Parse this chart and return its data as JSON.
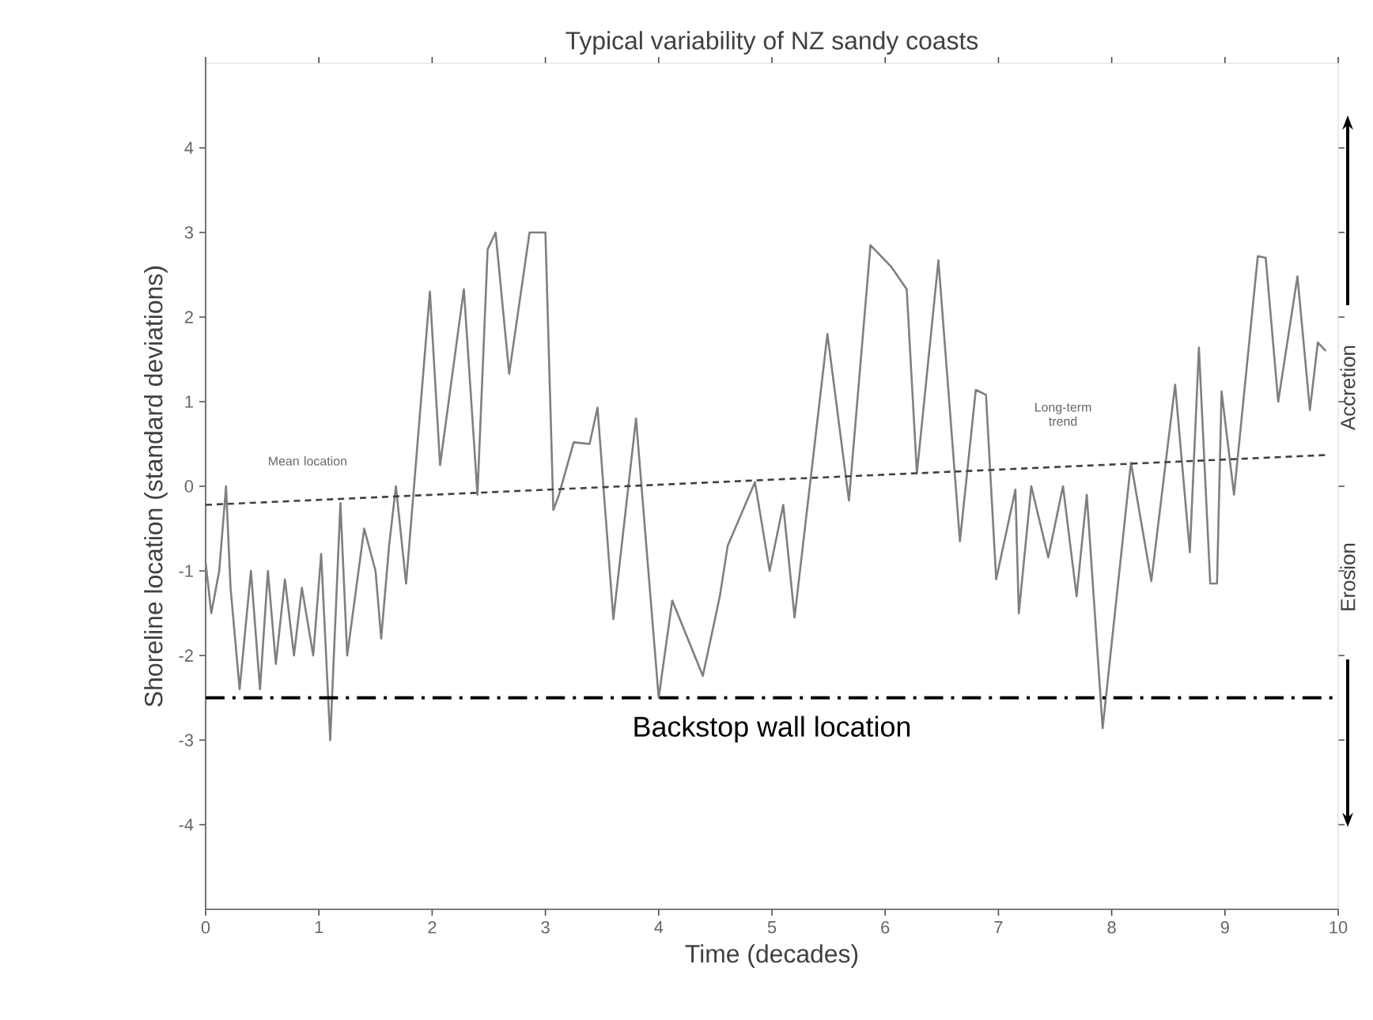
{
  "chart_data": {
    "type": "line",
    "title": "Typical variability of NZ sandy coasts",
    "xlabel": "Time (decades)",
    "ylabel": "Shoreline location (standard deviations)",
    "xlim": [
      0,
      10
    ],
    "ylim": [
      -5,
      5
    ],
    "xticks": [
      0,
      1,
      2,
      3,
      4,
      5,
      6,
      7,
      8,
      9,
      10
    ],
    "yticks": [
      -4,
      -3,
      -2,
      -1,
      0,
      1,
      2,
      3,
      4
    ],
    "marker": "none",
    "series": [
      {
        "color": "#7f7f7f",
        "line_style": "solid",
        "x": [
          0,
          0.05,
          0.12,
          0.18,
          0.22,
          0.3,
          0.4,
          0.48,
          0.55,
          0.62,
          0.7,
          0.78,
          0.85,
          0.95,
          1.02,
          1.1,
          1.19,
          1.25,
          1.4,
          1.5,
          1.55,
          1.62,
          1.68,
          1.77,
          1.98,
          2.07,
          2.28,
          2.4,
          2.49,
          2.56,
          2.68,
          2.86,
          3.0,
          3.07,
          3.12,
          3.25,
          3.39,
          3.46,
          3.6,
          3.8,
          4.0,
          4.12,
          4.39,
          4.54,
          4.61,
          4.85,
          4.98,
          5.1,
          5.2,
          5.49,
          5.68,
          5.87,
          6.05,
          6.19,
          6.28,
          6.47,
          6.66,
          6.8,
          6.89,
          6.98,
          7.15,
          7.18,
          7.29,
          7.44,
          7.57,
          7.69,
          7.78,
          7.92,
          8.17,
          8.35,
          8.56,
          8.69,
          8.77,
          8.87,
          8.93,
          8.97,
          9.08,
          9.29,
          9.36,
          9.47,
          9.64,
          9.75,
          9.82,
          9.89
        ],
        "values": [
          -0.9,
          -1.5,
          -1.0,
          0.0,
          -1.2,
          -2.4,
          -1.0,
          -2.4,
          -1.0,
          -2.1,
          -1.1,
          -2.0,
          -1.2,
          -2.0,
          -0.8,
          -3.0,
          -0.2,
          -2.0,
          -0.5,
          -1.0,
          -1.8,
          -0.7,
          0.0,
          -1.15,
          2.3,
          0.25,
          2.33,
          -0.1,
          2.8,
          3.0,
          1.33,
          3.0,
          3.0,
          -0.28,
          -0.1,
          0.52,
          0.5,
          0.93,
          -1.57,
          0.8,
          -2.5,
          -1.35,
          -2.24,
          -1.3,
          -0.7,
          0.05,
          -1.0,
          -0.22,
          -1.55,
          1.8,
          -0.17,
          2.85,
          2.6,
          2.33,
          0.15,
          2.67,
          -0.65,
          1.14,
          1.08,
          -1.1,
          -0.04,
          -1.5,
          0.0,
          -0.84,
          0.0,
          -1.3,
          -0.1,
          -2.86,
          0.28,
          -1.12,
          1.2,
          -0.78,
          1.64,
          -1.15,
          -1.15,
          1.12,
          -0.1,
          2.72,
          2.7,
          1.0,
          2.48,
          0.9,
          1.7,
          1.6
        ]
      },
      {
        "type": "line",
        "color": "#404040",
        "line_style": "dashed",
        "x": [
          0,
          9.9
        ],
        "values": [
          -0.22,
          0.37
        ]
      }
    ],
    "ref_lines": [
      {
        "axis": "y",
        "value": -2.5,
        "label": "Backstop wall location",
        "color": "#000000",
        "line_style": "dashdot"
      }
    ],
    "annotations": [
      "Mean location",
      "Long-term trend",
      "Accretion",
      "Erosion"
    ]
  }
}
